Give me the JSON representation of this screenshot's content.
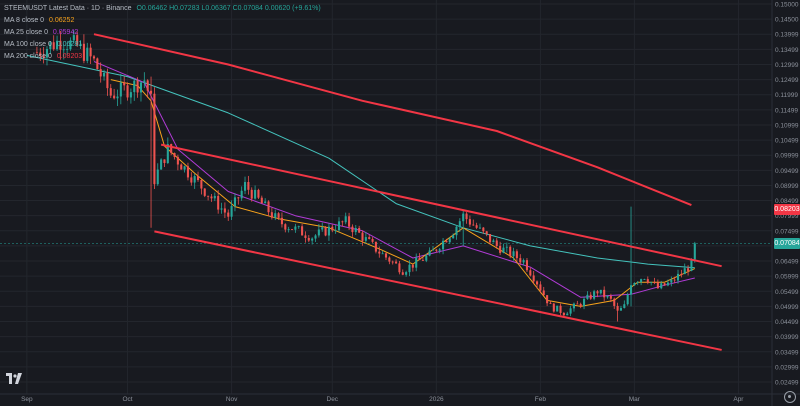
{
  "header": {
    "title": "STEEMUSDT Latest Data · 1D · Binance",
    "ohlc": "O0.06462  H0.07283  L0.06367  C0.07084  0.00620 (+9.61%)"
  },
  "indicators": [
    {
      "label": "MA 8 close 0",
      "value": "0.06252",
      "color": "#f7a21b"
    },
    {
      "label": "MA 25 close 0",
      "value": "0.05942",
      "color": "#b13bd6"
    },
    {
      "label": "MA 100 close 0",
      "value": "0.06281",
      "color": "#44c3bd"
    },
    {
      "label": "MA 200 close 0",
      "value": "0.08203",
      "color": "#f23645"
    }
  ],
  "price_labels": {
    "ma200": "0.08203",
    "last": "0.07084"
  },
  "colors": {
    "background": "#181a20",
    "up": "#26a69a",
    "down": "#ef5350",
    "channel": "#f23645",
    "grid": "#23262d"
  },
  "chart_data": {
    "type": "candlestick",
    "title": "STEEMUSDT Latest Data · 1D · Binance",
    "y_axis": {
      "min": 0.025,
      "max": 0.15,
      "ticks": [
        "0.15000",
        "0.14500",
        "0.13999",
        "0.13499",
        "0.12999",
        "0.12499",
        "0.11999",
        "0.11499",
        "0.10999",
        "0.10499",
        "0.09999",
        "0.09499",
        "0.08999",
        "0.08499",
        "0.07999",
        "0.07499",
        "0.06999",
        "0.06499",
        "0.05999",
        "0.05499",
        "0.04999",
        "0.04499",
        "0.03999",
        "0.03499",
        "0.02999",
        "0.02499"
      ],
      "tick_values": [
        0.15,
        0.145,
        0.14,
        0.135,
        0.13,
        0.125,
        0.12,
        0.115,
        0.11,
        0.105,
        0.1,
        0.095,
        0.09,
        0.085,
        0.08,
        0.075,
        0.07,
        0.065,
        0.06,
        0.055,
        0.05,
        0.045,
        0.04,
        0.035,
        0.03,
        0.025
      ]
    },
    "x_axis": {
      "ticks": [
        {
          "label": "Sep",
          "day": 0
        },
        {
          "label": "Oct",
          "day": 30
        },
        {
          "label": "Nov",
          "day": 61
        },
        {
          "label": "Dec",
          "day": 91
        },
        {
          "label": "2026",
          "day": 122
        },
        {
          "label": "Feb",
          "day": 153
        },
        {
          "label": "Mar",
          "day": 181
        },
        {
          "label": "Apr",
          "day": 212
        }
      ],
      "day_min": -8,
      "day_max": 222
    },
    "anchors": [
      {
        "day": 3,
        "price": 0.134
      },
      {
        "day": 10,
        "price": 0.138
      },
      {
        "day": 15,
        "price": 0.136
      },
      {
        "day": 20,
        "price": 0.131
      },
      {
        "day": 25,
        "price": 0.12
      },
      {
        "day": 30,
        "price": 0.122
      },
      {
        "day": 35,
        "price": 0.125
      },
      {
        "day": 37,
        "price": 0.118
      },
      {
        "day": 38,
        "price": 0.092
      },
      {
        "day": 42,
        "price": 0.102
      },
      {
        "day": 50,
        "price": 0.092
      },
      {
        "day": 60,
        "price": 0.08
      },
      {
        "day": 65,
        "price": 0.09
      },
      {
        "day": 75,
        "price": 0.078
      },
      {
        "day": 85,
        "price": 0.073
      },
      {
        "day": 95,
        "price": 0.078
      },
      {
        "day": 105,
        "price": 0.068
      },
      {
        "day": 112,
        "price": 0.062
      },
      {
        "day": 120,
        "price": 0.067
      },
      {
        "day": 127,
        "price": 0.075
      },
      {
        "day": 130,
        "price": 0.08
      },
      {
        "day": 140,
        "price": 0.07
      },
      {
        "day": 148,
        "price": 0.065
      },
      {
        "day": 152,
        "price": 0.058
      },
      {
        "day": 156,
        "price": 0.05
      },
      {
        "day": 160,
        "price": 0.048
      },
      {
        "day": 165,
        "price": 0.051
      },
      {
        "day": 170,
        "price": 0.055
      },
      {
        "day": 174,
        "price": 0.052
      },
      {
        "day": 176,
        "price": 0.048
      },
      {
        "day": 178,
        "price": 0.05
      },
      {
        "day": 180,
        "price": 0.058
      },
      {
        "day": 184,
        "price": 0.06
      },
      {
        "day": 188,
        "price": 0.056
      },
      {
        "day": 192,
        "price": 0.058
      },
      {
        "day": 196,
        "price": 0.062
      },
      {
        "day": 198,
        "price": 0.064
      },
      {
        "day": 199,
        "price": 0.0708
      }
    ],
    "spikes": [
      {
        "day": 37,
        "high": 0.126,
        "low": 0.076
      },
      {
        "day": 130,
        "high": 0.082,
        "low": 0.07
      },
      {
        "day": 180,
        "high": 0.083,
        "low": 0.05
      },
      {
        "day": 176,
        "high": 0.049,
        "low": 0.045
      }
    ],
    "ma_series": [
      {
        "name": "MA 200",
        "color": "#f23645",
        "width": 2,
        "points": [
          {
            "day": 20,
            "price": 0.14
          },
          {
            "day": 60,
            "price": 0.13
          },
          {
            "day": 100,
            "price": 0.118
          },
          {
            "day": 140,
            "price": 0.108
          },
          {
            "day": 170,
            "price": 0.096
          },
          {
            "day": 198,
            "price": 0.0835
          }
        ]
      },
      {
        "name": "MA 100",
        "color": "#44c3bd",
        "width": 1,
        "points": [
          {
            "day": 0,
            "price": 0.133
          },
          {
            "day": 30,
            "price": 0.126
          },
          {
            "day": 60,
            "price": 0.114
          },
          {
            "day": 90,
            "price": 0.099
          },
          {
            "day": 110,
            "price": 0.084
          },
          {
            "day": 130,
            "price": 0.076
          },
          {
            "day": 150,
            "price": 0.07
          },
          {
            "day": 170,
            "price": 0.066
          },
          {
            "day": 185,
            "price": 0.064
          },
          {
            "day": 199,
            "price": 0.0628
          }
        ]
      },
      {
        "name": "MA 25",
        "color": "#b13bd6",
        "width": 1,
        "points": [
          {
            "day": 20,
            "price": 0.131
          },
          {
            "day": 35,
            "price": 0.124
          },
          {
            "day": 45,
            "price": 0.102
          },
          {
            "day": 60,
            "price": 0.088
          },
          {
            "day": 80,
            "price": 0.08
          },
          {
            "day": 100,
            "price": 0.075
          },
          {
            "day": 115,
            "price": 0.066
          },
          {
            "day": 130,
            "price": 0.07
          },
          {
            "day": 150,
            "price": 0.063
          },
          {
            "day": 165,
            "price": 0.053
          },
          {
            "day": 180,
            "price": 0.054
          },
          {
            "day": 190,
            "price": 0.057
          },
          {
            "day": 199,
            "price": 0.0594
          }
        ]
      },
      {
        "name": "MA 8",
        "color": "#f7a21b",
        "width": 1,
        "points": [
          {
            "day": 25,
            "price": 0.125
          },
          {
            "day": 33,
            "price": 0.123
          },
          {
            "day": 37,
            "price": 0.118
          },
          {
            "day": 41,
            "price": 0.103
          },
          {
            "day": 50,
            "price": 0.094
          },
          {
            "day": 62,
            "price": 0.083
          },
          {
            "day": 75,
            "price": 0.079
          },
          {
            "day": 90,
            "price": 0.076
          },
          {
            "day": 105,
            "price": 0.069
          },
          {
            "day": 115,
            "price": 0.064
          },
          {
            "day": 130,
            "price": 0.076
          },
          {
            "day": 145,
            "price": 0.066
          },
          {
            "day": 155,
            "price": 0.052
          },
          {
            "day": 165,
            "price": 0.05
          },
          {
            "day": 175,
            "price": 0.052
          },
          {
            "day": 182,
            "price": 0.058
          },
          {
            "day": 190,
            "price": 0.058
          },
          {
            "day": 199,
            "price": 0.0625
          }
        ]
      }
    ],
    "channel_lines": [
      {
        "from": {
          "day": 40,
          "price": 0.1035
        },
        "to": {
          "day": 207,
          "price": 0.0633
        }
      },
      {
        "from": {
          "day": 38,
          "price": 0.0748
        },
        "to": {
          "day": 207,
          "price": 0.0356
        }
      }
    ],
    "last_price": 0.07084,
    "ma200_value": 0.08203
  }
}
